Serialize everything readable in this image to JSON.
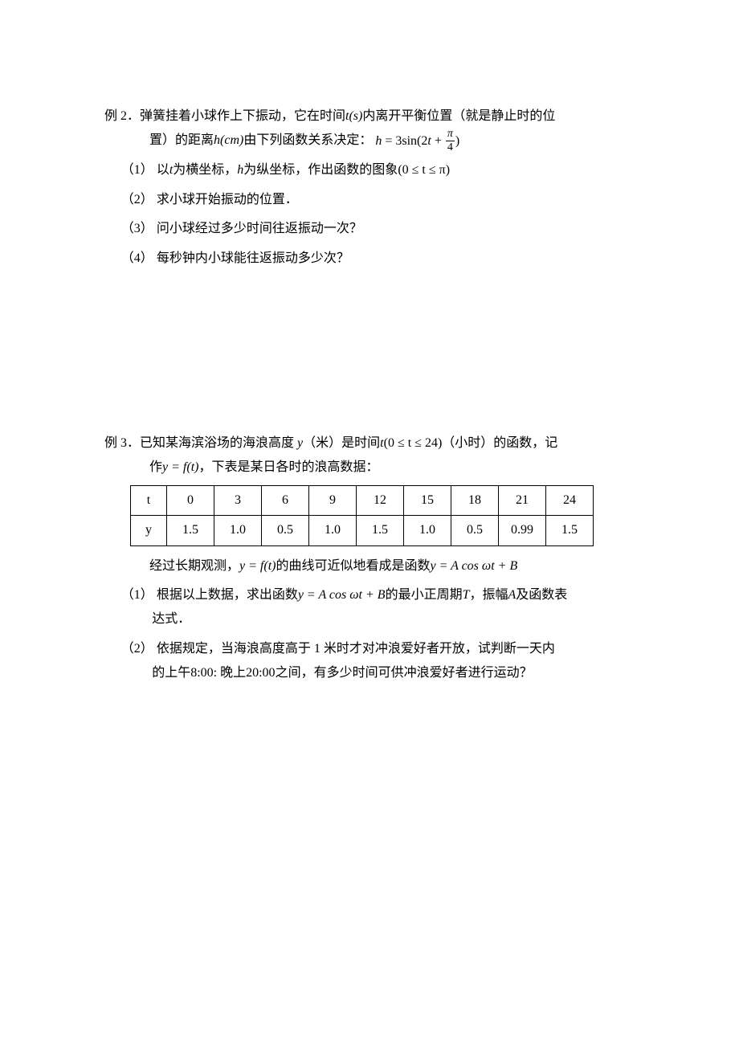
{
  "ex2": {
    "label": "例 2．",
    "head_line1_a": "弹簧挂着小球作上下振动，它在时间",
    "head_line1_t": "t(s)",
    "head_line1_b": "内离开平衡位置（就是静止时的位",
    "head_line2_a": "置）的距离",
    "head_line2_h": "h(cm)",
    "head_line2_b": "由下列函数关系决定：",
    "formula_prefix": "h",
    "formula_eq": " = 3sin(2",
    "formula_t": "t",
    "formula_plus": " + ",
    "formula_frac_n": "π",
    "formula_frac_d": "4",
    "formula_close": ")",
    "q1_num": "（1）",
    "q1_a": "以",
    "q1_t": "t",
    "q1_b": "为横坐标，",
    "q1_h": "h",
    "q1_c": "为纵坐标，作出函数的图象",
    "q1_range": "(0 ≤ t ≤ π)",
    "q2_num": "（2）",
    "q2_text": "求小球开始振动的位置．",
    "q3_num": "（3）",
    "q3_text": "问小球经过多少时间往返振动一次？",
    "q4_num": "（4）",
    "q4_text": "每秒钟内小球能往返振动多少次？"
  },
  "ex3": {
    "label": "例 3．",
    "head_line1_a": "已知某海滨浴场的海浪高度",
    "head_line1_y": "y",
    "head_line1_b": "（米）是时间",
    "head_line1_t": "t",
    "head_line1_range": "(0 ≤ t ≤ 24)",
    "head_line1_c": "（小时）的函数，记",
    "head_line2_a": "作",
    "head_line2_yfn": "y = f(t)",
    "head_line2_b": "，下表是某日各时的浪高数据：",
    "table": {
      "row1": [
        "t",
        "0",
        "3",
        "6",
        "9",
        "12",
        "15",
        "18",
        "21",
        "24"
      ],
      "row2": [
        "y",
        "1.5",
        "1.0",
        "0.5",
        "1.0",
        "1.5",
        "1.0",
        "0.5",
        "0.99",
        "1.5"
      ]
    },
    "post_table_a": "经过长期观测，",
    "post_table_fn": "y = f(t)",
    "post_table_b": "的曲线可近似地看成是函数",
    "post_table_form": "y = A cos ωt + B",
    "q1_num": "（1）",
    "q1_a": "根据以上数据，求出函数",
    "q1_form": "y = A cos ωt + B",
    "q1_b": "的最小正周期",
    "q1_T": "T",
    "q1_c": "，振幅",
    "q1_A": "A",
    "q1_d": "及函数表",
    "q1_line2": "达式．",
    "q2_num": "（2）",
    "q2_line1": "依据规定，当海浪高度高于 1 米时才对冲浪爱好者开放，试判断一天内",
    "q2_line2_a": "的上午",
    "q2_line2_t1": "8:00:",
    "q2_line2_b": "晚上",
    "q2_line2_t2": "20:00",
    "q2_line2_c": "之间，有多少时间可供冲浪爱好者进行运动？"
  }
}
